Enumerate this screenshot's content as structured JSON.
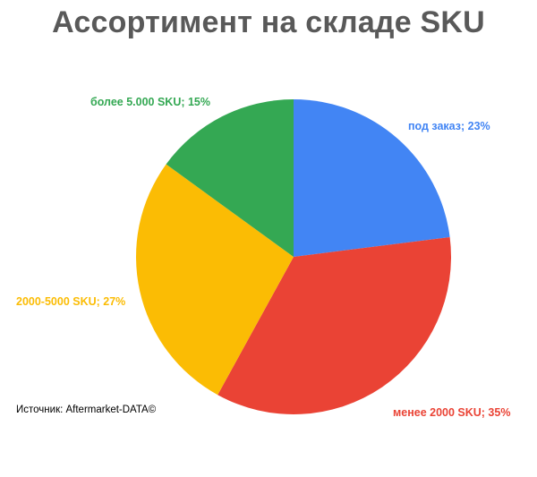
{
  "chart_data": {
    "type": "pie",
    "title": "Ассортимент на складе SKU",
    "slices": [
      {
        "label": "под заказ; 23%",
        "value": 23,
        "color": "#4285F4"
      },
      {
        "label": "менее 2000 SKU; 35%",
        "value": 35,
        "color": "#EA4335"
      },
      {
        "label": "2000-5000 SKU; 27%",
        "value": 27,
        "color": "#FBBC04"
      },
      {
        "label": "более 5.000 SKU; 15%",
        "value": 15,
        "color": "#34A853"
      }
    ],
    "start_angle": "12 o'clock",
    "direction": "clockwise",
    "legend": "none"
  },
  "source": "Источник: Aftermarket-DATA©"
}
